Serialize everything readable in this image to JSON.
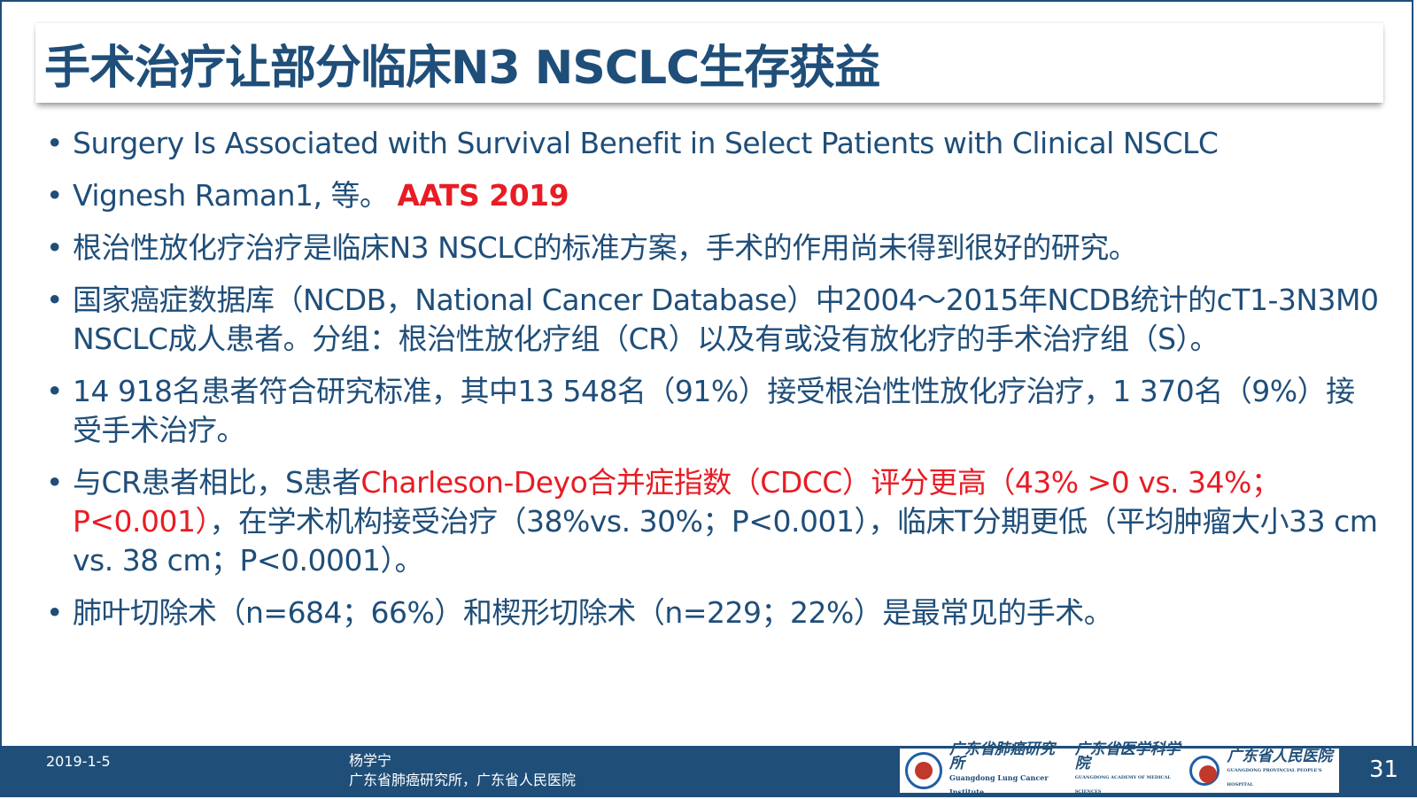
{
  "title": "手术治疗让部分临床N3 NSCLC生存获益",
  "bullets": {
    "b1": "Surgery Is Associated with Survival Benefit in Select Patients with Clinical NSCLC",
    "b2_main": "Vignesh Raman1, 等。 ",
    "b2_highlight": "AATS 2019",
    "b3": "根治性放化疗治疗是临床N3 NSCLC的标准方案，手术的作用尚未得到很好的研究。",
    "b4": "国家癌症数据库（NCDB，National Cancer Database）中2004～2015年NCDB统计的cT1-3N3M0 NSCLC成人患者。分组：根治性放化疗组（CR）以及有或没有放化疗的手术治疗组（S）。",
    "b5": "14 918名患者符合研究标准，其中13 548名（91%）接受根治性性放化疗治疗，1 370名（9%）接受手术治疗。",
    "b6_pre": "与CR患者相比，S患者",
    "b6_highlight": "Charleson-Deyo合并症指数（CDCC）评分更高（43% >0 vs. 34%；P<0.001）",
    "b6_post": "，在学术机构接受治疗（38%vs. 30%；P<0.001），临床T分期更低（平均肿瘤大小33 cm vs. 38 cm；P<0.0001）。",
    "b7": "肺叶切除术（n=684；66%）和楔形切除术（n=229；22%）是最常见的手术。"
  },
  "footer": {
    "date": "2019-1-5",
    "author": "杨学宁",
    "institution": "广东省肺癌研究所，广东省人民医院",
    "logo1_name": "广东省肺癌研究所",
    "logo1_sub": "Guangdong Lung Cancer Institute",
    "logo2_name": "广东省医学科学院",
    "logo2_sub": "GUANGDONG ACADEMY OF MEDICAL SCIENCES",
    "logo3_name": "广东省人民医院",
    "logo3_sub": "GUANGDONG PROVINCIAL PEOPLE'S HOSPITAL",
    "page_number": "31"
  },
  "colors": {
    "primary": "#1f4e79",
    "highlight": "#e81c24"
  }
}
